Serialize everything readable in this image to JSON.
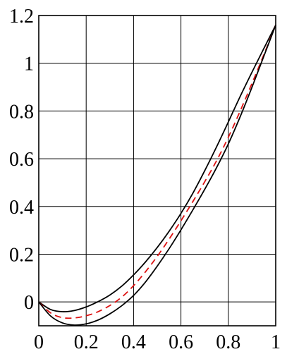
{
  "chart_data": {
    "type": "line",
    "title": "",
    "xlabel": "",
    "ylabel": "",
    "xlim": [
      0,
      1
    ],
    "ylim": [
      -0.1,
      1.2
    ],
    "x_ticks": [
      {
        "value": 0,
        "label": "0"
      },
      {
        "value": 0.2,
        "label": "0.2"
      },
      {
        "value": 0.4,
        "label": "0.4"
      },
      {
        "value": 0.6,
        "label": "0.6"
      },
      {
        "value": 0.8,
        "label": "0.8"
      },
      {
        "value": 1,
        "label": "1"
      }
    ],
    "y_ticks": [
      {
        "value": 0,
        "label": "0"
      },
      {
        "value": 0.2,
        "label": "0.2"
      },
      {
        "value": 0.4,
        "label": "0.4"
      },
      {
        "value": 0.6,
        "label": "0.6"
      },
      {
        "value": 0.8,
        "label": "0.8"
      },
      {
        "value": 1,
        "label": "1"
      },
      {
        "value": 1.2,
        "label": "1.2"
      }
    ],
    "grid": true,
    "legend": "none",
    "series": [
      {
        "style": "solid",
        "color": "#000000",
        "x": [
          0,
          0.05,
          0.1,
          0.15,
          0.2,
          0.25,
          0.3,
          0.35,
          0.4,
          0.45,
          0.5,
          0.55,
          0.6,
          0.65,
          0.7,
          0.75,
          0.8,
          0.85,
          0.9,
          0.95,
          1
        ],
        "y": [
          0,
          -0.032,
          -0.041,
          -0.036,
          -0.021,
          0.001,
          0.029,
          0.066,
          0.113,
          0.167,
          0.228,
          0.296,
          0.371,
          0.455,
          0.549,
          0.649,
          0.754,
          0.861,
          0.963,
          1.062,
          1.16
        ]
      },
      {
        "style": "dashed",
        "color": "#dd1111",
        "x": [
          0,
          0.05,
          0.1,
          0.15,
          0.2,
          0.25,
          0.3,
          0.35,
          0.4,
          0.45,
          0.5,
          0.55,
          0.6,
          0.65,
          0.7,
          0.75,
          0.8,
          0.85,
          0.9,
          0.95,
          1
        ],
        "y": [
          0,
          -0.046,
          -0.066,
          -0.067,
          -0.058,
          -0.041,
          -0.015,
          0.02,
          0.068,
          0.126,
          0.191,
          0.263,
          0.34,
          0.42,
          0.503,
          0.591,
          0.69,
          0.8,
          0.916,
          1.036,
          1.16
        ]
      },
      {
        "style": "solid",
        "color": "#000000",
        "x": [
          0,
          0.05,
          0.1,
          0.15,
          0.2,
          0.25,
          0.3,
          0.35,
          0.4,
          0.45,
          0.5,
          0.55,
          0.6,
          0.65,
          0.7,
          0.75,
          0.8,
          0.85,
          0.9,
          0.95,
          1
        ],
        "y": [
          0,
          -0.059,
          -0.088,
          -0.097,
          -0.092,
          -0.076,
          -0.05,
          -0.016,
          0.027,
          0.083,
          0.15,
          0.223,
          0.302,
          0.385,
          0.471,
          0.562,
          0.662,
          0.776,
          0.9,
          1.03,
          1.16
        ]
      }
    ]
  }
}
